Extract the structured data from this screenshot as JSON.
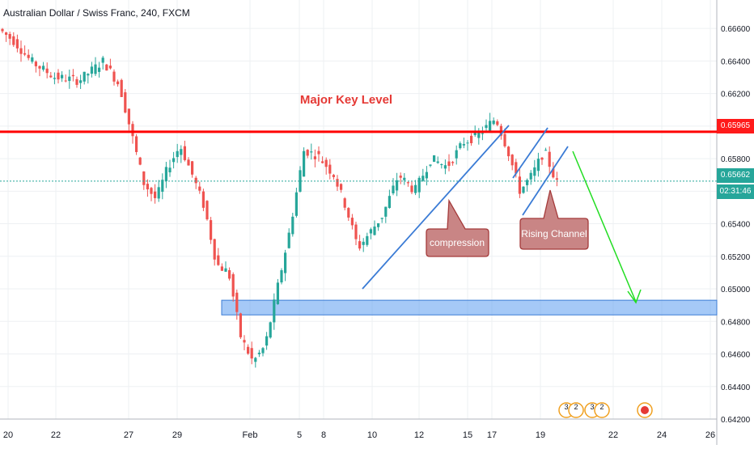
{
  "header": {
    "title": "Australian Dollar / Swiss Franc, 240, FXCM"
  },
  "chart_data": {
    "type": "candlestick",
    "symbol": "AUDCHF",
    "ylim": [
      0.642,
      0.667
    ],
    "y_ticks": [
      "0.66600",
      "0.66400",
      "0.66200",
      "0.66000",
      "0.65800",
      "0.65600",
      "0.65400",
      "0.65200",
      "0.65000",
      "0.64800",
      "0.64600",
      "0.64400",
      "0.64200"
    ],
    "x_ticks": [
      "20",
      "22",
      "27",
      "29",
      "Feb",
      "5",
      "8",
      "10",
      "12",
      "15",
      "17",
      "19",
      "22",
      "24",
      "26"
    ],
    "colors": {
      "up": "#26a69a",
      "down": "#ef5350",
      "resistance": "#ff0000",
      "zone": "#5b9cf0",
      "trend": "#3a7bd5",
      "projection": "#22dd22"
    },
    "levels": {
      "major_key_level": {
        "label": "Major Key Level",
        "value": 0.65965,
        "tag": "0.65965"
      },
      "current_price": {
        "value": 0.65662,
        "tag": "0.65662",
        "countdown": "02:31:46"
      },
      "support_zone": [
        0.6484,
        0.6493
      ]
    },
    "annotations": [
      {
        "label": "compression"
      },
      {
        "label": "Rising Channel"
      }
    ],
    "event_markers": [
      "3",
      "2",
      "3",
      "2"
    ]
  }
}
